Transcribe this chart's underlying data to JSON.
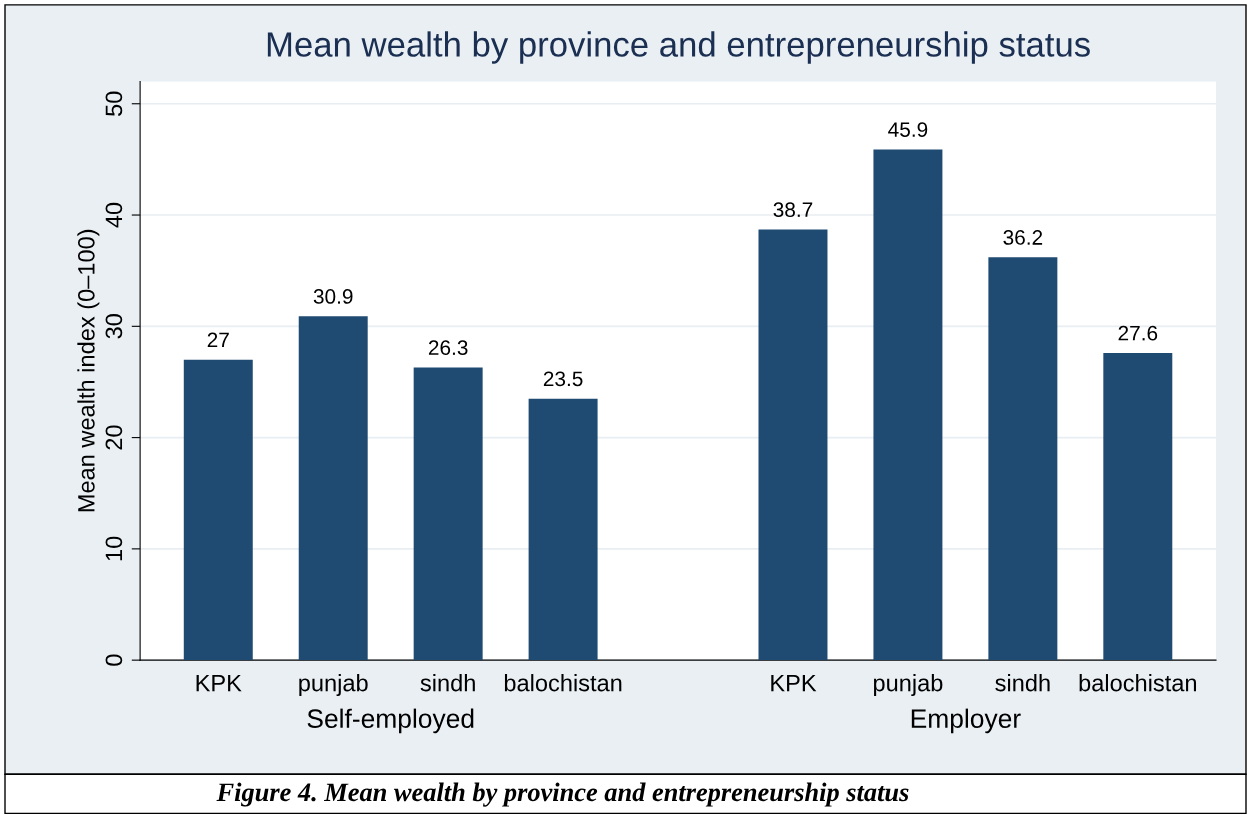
{
  "chart_data": {
    "type": "bar",
    "title": "Mean wealth by province and entrepreneurship status",
    "ylabel": "Mean wealth index (0–100)",
    "categories": [
      "KPK",
      "punjab",
      "sindh",
      "balochistan",
      null,
      "KPK",
      "punjab",
      "sindh",
      "balochistan"
    ],
    "values": [
      27,
      30.9,
      26.3,
      23.5,
      null,
      38.7,
      45.9,
      36.2,
      27.6
    ],
    "color": "#1f4a72",
    "data_labels": true,
    "ylim": [
      0,
      52
    ],
    "yticks": [
      0,
      10,
      20,
      30,
      40,
      50
    ],
    "grid": "y",
    "legend": false,
    "annotations": [
      "Self-employed",
      "Employer",
      "Figure 4. Mean wealth by province and entrepreneurship status"
    ]
  }
}
